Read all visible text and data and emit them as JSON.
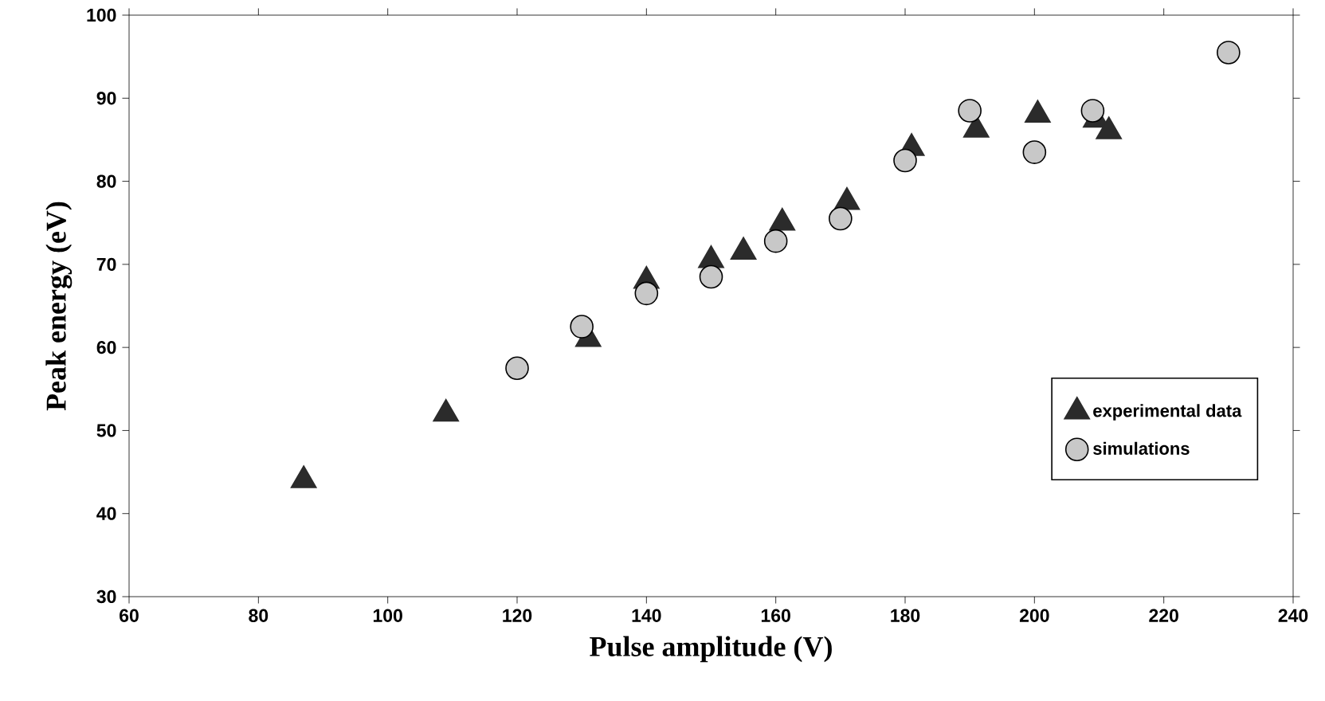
{
  "chart_data": {
    "type": "scatter",
    "xlabel": "Pulse amplitude  (V)",
    "ylabel": "Peak energy (eV)",
    "xlim": [
      60,
      240
    ],
    "xticks": [
      60,
      80,
      100,
      120,
      140,
      160,
      180,
      200,
      220,
      240
    ],
    "ylim": [
      30,
      100
    ],
    "yticks": [
      30,
      40,
      50,
      60,
      70,
      80,
      90,
      100
    ],
    "grid": false,
    "legend": "right",
    "series": [
      {
        "name": "experimental data",
        "color": "#2b2b2b",
        "marker": "triangle",
        "x": [
          87,
          109,
          131,
          140,
          150,
          155,
          161,
          171,
          181,
          191,
          200.5,
          209.5,
          211.5
        ],
        "values": [
          44,
          52,
          61,
          68,
          70.5,
          71.5,
          75,
          77.5,
          84,
          86.2,
          88,
          87.4,
          86
        ]
      },
      {
        "name": "simulations",
        "color": "#c8c8c8",
        "marker": "circle",
        "x": [
          120,
          130,
          140,
          150,
          160,
          170,
          180,
          190,
          200,
          209,
          230
        ],
        "values": [
          57.5,
          62.5,
          66.5,
          68.5,
          72.8,
          75.5,
          82.5,
          88.5,
          83.5,
          88.5,
          95.5
        ]
      }
    ]
  }
}
